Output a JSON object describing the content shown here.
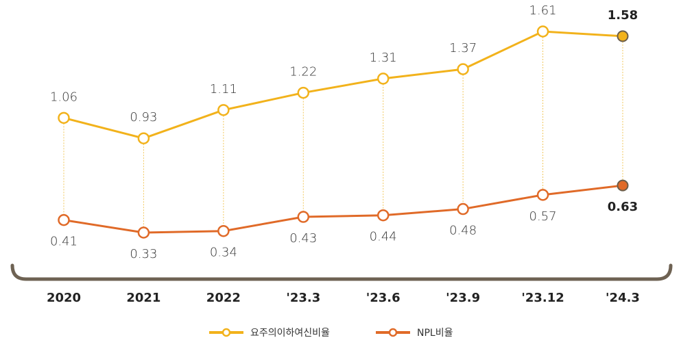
{
  "chart_data": {
    "type": "line",
    "categories": [
      "2020",
      "2021",
      "2022",
      "'23.3",
      "'23.6",
      "'23.9",
      "'23.12",
      "'24.3"
    ],
    "series": [
      {
        "name": "요주의이하여신비율",
        "color": "#f2b21b",
        "values": [
          1.06,
          0.93,
          1.11,
          1.22,
          1.31,
          1.37,
          1.61,
          1.58
        ]
      },
      {
        "name": "NPL비율",
        "color": "#e06a28",
        "values": [
          0.41,
          0.33,
          0.34,
          0.43,
          0.44,
          0.48,
          0.57,
          0.63
        ]
      }
    ]
  }
}
